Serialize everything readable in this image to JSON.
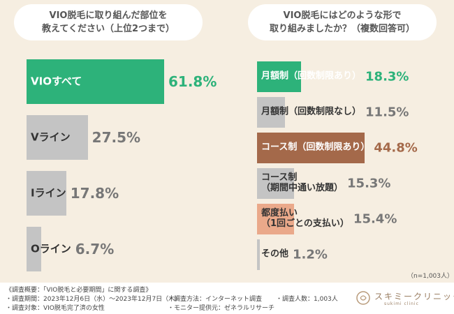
{
  "chart_data": [
    {
      "type": "bar",
      "orientation": "horizontal",
      "title": "VIO脱毛に取り組んだ部位を\n教えてください（上位2つまで）",
      "categories": [
        "VIOすべて",
        "Vライン",
        "Iライン",
        "Oライン"
      ],
      "values": [
        61.8,
        27.5,
        17.8,
        6.7
      ],
      "value_labels": [
        "61.8%",
        "27.5%",
        "17.8%",
        "6.7%"
      ],
      "colors": [
        "#2db27a",
        "#c4c4c4",
        "#c4c4c4",
        "#c4c4c4"
      ]
    },
    {
      "type": "bar",
      "orientation": "horizontal",
      "title": "VIO脱毛にはどのような形で\n取り組みましたか？（複数回答可）",
      "categories": [
        "月額制（回数制限あり）",
        "月額制（回数制限なし）",
        "コース制（回数制限あり）",
        "コース制\n（期間中通い放題）",
        "都度払い\n（1回ごとの支払い）",
        "その他"
      ],
      "values": [
        18.3,
        11.5,
        44.8,
        15.3,
        15.4,
        1.2
      ],
      "value_labels": [
        "18.3%",
        "11.5%",
        "44.8%",
        "15.3%",
        "15.4%",
        "1.2%"
      ],
      "colors": [
        "#2db27a",
        "#c4c4c4",
        "#a4694a",
        "#c4c4c4",
        "#eaa98a",
        "#c4c4c4"
      ],
      "note": "（n=1,003人）"
    }
  ],
  "footer": {
    "heading": "《調査概要：「VIO脱毛と必要期間」に関する調査》",
    "items": [
      "・調査期間：2023年12月6日（水）～2023年12月7日（木）",
      "・調査対象：VIO脱毛完了済の女性",
      "・調査方法：インターネット調査",
      "・モニター提供元：ゼネラルリサーチ",
      "・調査人数：1,003人"
    ],
    "logo": "スキミークリニック",
    "logo_sub": "sukimi clinic"
  }
}
